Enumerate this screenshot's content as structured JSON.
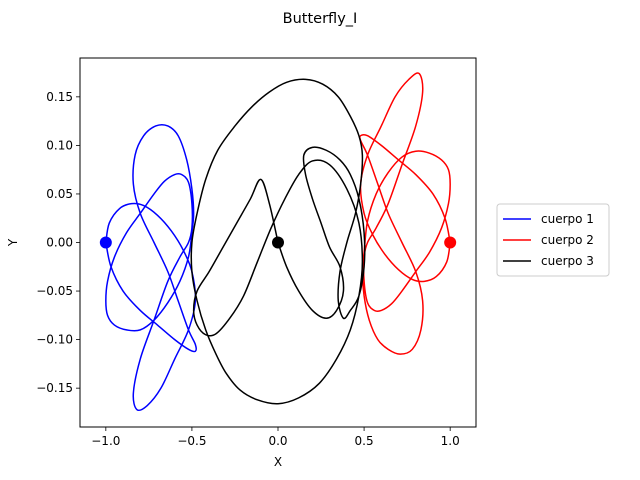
{
  "chart_data": {
    "type": "line",
    "title": "Butterfly_I",
    "xlabel": "X",
    "ylabel": "Y",
    "xlim": [
      -1.15,
      1.15
    ],
    "ylim": [
      -0.19,
      0.19
    ],
    "x_ticks": [
      -1.0,
      -0.5,
      0.0,
      0.5,
      1.0
    ],
    "x_tick_labels": [
      "−1.0",
      "−0.5",
      "0.0",
      "0.5",
      "1.0"
    ],
    "y_ticks": [
      -0.15,
      -0.1,
      -0.05,
      0.0,
      0.05,
      0.1,
      0.15
    ],
    "y_tick_labels": [
      "−0.15",
      "−0.10",
      "−0.05",
      "0.00",
      "0.05",
      "0.10",
      "0.15"
    ],
    "grid": false,
    "legend_position": "right, outside plot",
    "series": [
      {
        "name": "cuerpo 1",
        "color": "#0000ff",
        "start_point": [
          -1.0,
          0.0
        ],
        "x": [
          -1.0,
          -0.98,
          -0.92,
          -0.85,
          -0.78,
          -0.7,
          -0.62,
          -0.55,
          -0.5,
          -0.48,
          -0.52,
          -0.6,
          -0.68,
          -0.76,
          -0.82,
          -0.84,
          -0.8,
          -0.72,
          -0.64,
          -0.57,
          -0.52,
          -0.5,
          -0.5,
          -0.52,
          -0.56,
          -0.6,
          -0.66,
          -0.72,
          -0.8,
          -0.88,
          -0.95,
          -0.99,
          -1.0,
          -0.99,
          -0.95,
          -0.88,
          -0.8,
          -0.72,
          -0.64,
          -0.57,
          -0.52,
          -0.5,
          -0.49,
          -0.5,
          -0.53,
          -0.58,
          -0.64,
          -0.71,
          -0.78,
          -0.83,
          -0.84,
          -0.8,
          -0.72,
          -0.64,
          -0.58,
          -0.52,
          -0.48,
          -0.48,
          -0.52,
          -0.6,
          -0.7,
          -0.8,
          -0.9,
          -0.97,
          -1.0
        ],
        "y": [
          0.0,
          0.02,
          0.035,
          0.04,
          0.038,
          0.028,
          0.012,
          -0.008,
          -0.03,
          -0.06,
          -0.09,
          -0.12,
          -0.15,
          -0.168,
          -0.172,
          -0.155,
          -0.12,
          -0.08,
          -0.04,
          -0.015,
          0.0,
          0.015,
          0.04,
          0.062,
          0.07,
          0.07,
          0.063,
          0.05,
          0.03,
          0.01,
          -0.015,
          -0.04,
          -0.06,
          -0.075,
          -0.085,
          -0.09,
          -0.09,
          -0.08,
          -0.062,
          -0.04,
          -0.015,
          0.01,
          0.03,
          0.055,
          0.085,
          0.11,
          0.12,
          0.12,
          0.11,
          0.09,
          0.06,
          0.03,
          0.0,
          -0.03,
          -0.06,
          -0.09,
          -0.105,
          -0.112,
          -0.11,
          -0.1,
          -0.085,
          -0.07,
          -0.05,
          -0.025,
          0.0
        ]
      },
      {
        "name": "cuerpo 2",
        "color": "#ff0000",
        "start_point": [
          1.0,
          0.0
        ],
        "x": [
          1.0,
          0.98,
          0.92,
          0.85,
          0.78,
          0.7,
          0.62,
          0.55,
          0.5,
          0.48,
          0.52,
          0.6,
          0.68,
          0.76,
          0.82,
          0.84,
          0.8,
          0.72,
          0.64,
          0.57,
          0.52,
          0.5,
          0.5,
          0.52,
          0.56,
          0.6,
          0.66,
          0.72,
          0.8,
          0.88,
          0.95,
          0.99,
          1.0,
          0.99,
          0.95,
          0.88,
          0.8,
          0.72,
          0.64,
          0.57,
          0.52,
          0.5,
          0.49,
          0.5,
          0.53,
          0.58,
          0.64,
          0.71,
          0.78,
          0.83,
          0.84,
          0.8,
          0.72,
          0.64,
          0.58,
          0.52,
          0.48,
          0.48,
          0.52,
          0.6,
          0.7,
          0.8,
          0.9,
          0.97,
          1.0
        ],
        "y": [
          0.0,
          -0.02,
          -0.035,
          -0.04,
          -0.038,
          -0.028,
          -0.012,
          0.008,
          0.03,
          0.06,
          0.09,
          0.12,
          0.15,
          0.168,
          0.174,
          0.155,
          0.12,
          0.08,
          0.04,
          0.015,
          0.0,
          -0.015,
          -0.04,
          -0.062,
          -0.07,
          -0.07,
          -0.063,
          -0.05,
          -0.03,
          -0.01,
          0.015,
          0.04,
          0.06,
          0.075,
          0.085,
          0.092,
          0.094,
          0.088,
          0.072,
          0.05,
          0.022,
          -0.01,
          -0.03,
          -0.055,
          -0.08,
          -0.1,
          -0.11,
          -0.115,
          -0.11,
          -0.09,
          -0.06,
          -0.03,
          0.0,
          0.03,
          0.06,
          0.09,
          0.105,
          0.11,
          0.11,
          0.1,
          0.085,
          0.07,
          0.05,
          0.025,
          0.0
        ]
      },
      {
        "name": "cuerpo 3",
        "color": "#000000",
        "start_point": [
          0.0,
          0.0
        ],
        "x": [
          0.0,
          0.05,
          0.12,
          0.2,
          0.28,
          0.34,
          0.38,
          0.36,
          0.3,
          0.25,
          0.2,
          0.16,
          0.15,
          0.2,
          0.28,
          0.36,
          0.42,
          0.47,
          0.5,
          0.5,
          0.47,
          0.42,
          0.38,
          0.35,
          0.36,
          0.4,
          0.45,
          0.48,
          0.49,
          0.47,
          0.42,
          0.35,
          0.26,
          0.16,
          0.05,
          -0.05,
          -0.15,
          -0.25,
          -0.35,
          -0.42,
          -0.47,
          -0.5,
          -0.5,
          -0.47,
          -0.42,
          -0.36,
          -0.3,
          -0.22,
          -0.12,
          0.0,
          0.12,
          0.24,
          0.34,
          0.42,
          0.47,
          0.49,
          0.47,
          0.4,
          0.3,
          0.2,
          0.12,
          0.04,
          -0.04,
          -0.12,
          -0.2,
          -0.28,
          -0.36,
          -0.42,
          -0.47,
          -0.49,
          -0.47,
          -0.4,
          -0.32,
          -0.24,
          -0.16,
          -0.1,
          -0.05,
          0.0
        ],
        "y": [
          0.0,
          -0.025,
          -0.05,
          -0.07,
          -0.078,
          -0.07,
          -0.05,
          -0.025,
          -0.005,
          0.02,
          0.045,
          0.07,
          0.09,
          0.098,
          0.095,
          0.085,
          0.07,
          0.045,
          0.01,
          -0.025,
          -0.055,
          -0.07,
          -0.078,
          -0.06,
          -0.03,
          0.0,
          0.03,
          0.06,
          0.09,
          0.11,
          0.13,
          0.15,
          0.163,
          0.168,
          0.165,
          0.155,
          0.14,
          0.12,
          0.095,
          0.065,
          0.03,
          0.0,
          -0.03,
          -0.06,
          -0.09,
          -0.115,
          -0.135,
          -0.152,
          -0.162,
          -0.166,
          -0.16,
          -0.145,
          -0.12,
          -0.09,
          -0.055,
          -0.02,
          0.02,
          0.055,
          0.08,
          0.084,
          0.07,
          0.045,
          0.015,
          -0.02,
          -0.055,
          -0.078,
          -0.094,
          -0.095,
          -0.085,
          -0.07,
          -0.05,
          -0.03,
          -0.005,
          0.02,
          0.045,
          0.065,
          0.04,
          0.0
        ]
      }
    ]
  }
}
